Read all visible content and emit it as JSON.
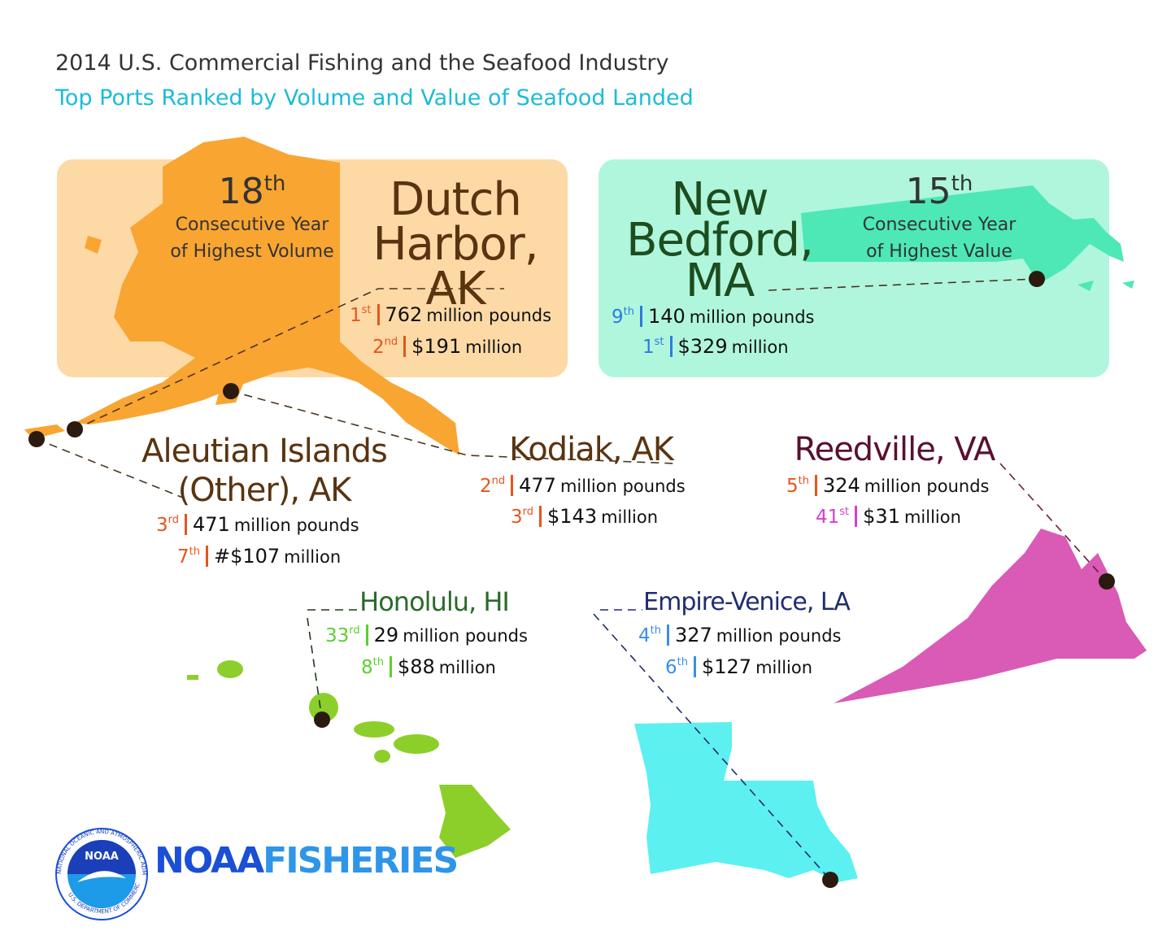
{
  "header": {
    "title": "2014 U.S. Commercial Fishing and the Seafood Industry",
    "subtitle": "Top Ports Ranked by Volume and Value of Seafood Landed"
  },
  "ports": [
    {
      "name_lines": [
        "Dutch",
        "Harbor,",
        "AK"
      ],
      "streak": {
        "number": "18",
        "suffix": "th",
        "lines": [
          "Consecutive Year",
          "of Highest Volume"
        ]
      },
      "volume": {
        "rank": "1",
        "suffix": "st",
        "amount": "762",
        "unit": "million pounds"
      },
      "value": {
        "rank": "2",
        "suffix": "nd",
        "amount": "$191",
        "unit": "million"
      }
    },
    {
      "name_lines": [
        "New",
        "Bedford,",
        "MA"
      ],
      "streak": {
        "number": "15",
        "suffix": "th",
        "lines": [
          "Consecutive Year",
          "of Highest Value"
        ]
      },
      "volume": {
        "rank": "9",
        "suffix": "th",
        "amount": "140",
        "unit": "million pounds"
      },
      "value": {
        "rank": "1",
        "suffix": "st",
        "amount": "$329",
        "unit": "million"
      }
    },
    {
      "name_lines": [
        "Aleutian Islands",
        "(Other), AK"
      ],
      "volume": {
        "rank": "3",
        "suffix": "rd",
        "amount": "471",
        "unit": "million pounds"
      },
      "value": {
        "rank": "7",
        "suffix": "th",
        "amount": "#$107",
        "unit": "million"
      }
    },
    {
      "name_lines": [
        "Kodiak, AK"
      ],
      "volume": {
        "rank": "2",
        "suffix": "nd",
        "amount": "477",
        "unit": "million pounds"
      },
      "value": {
        "rank": "3",
        "suffix": "rd",
        "amount": "$143",
        "unit": "million"
      }
    },
    {
      "name_lines": [
        "Reedville, VA"
      ],
      "volume": {
        "rank": "5",
        "suffix": "th",
        "amount": "324",
        "unit": "million pounds"
      },
      "value": {
        "rank": "41",
        "suffix": "st",
        "amount": "$31",
        "unit": "million"
      }
    },
    {
      "name_lines": [
        "Honolulu, HI"
      ],
      "volume": {
        "rank": "33",
        "suffix": "rd",
        "amount": "29",
        "unit": "million pounds"
      },
      "value": {
        "rank": "8",
        "suffix": "th",
        "amount": "$88",
        "unit": "million"
      }
    },
    {
      "name_lines": [
        "Empire-Venice, LA"
      ],
      "volume": {
        "rank": "4",
        "suffix": "th",
        "amount": "327",
        "unit": "million pounds"
      },
      "value": {
        "rank": "6",
        "suffix": "th",
        "amount": "$127",
        "unit": "million"
      }
    }
  ],
  "logo": {
    "emblem": "NOAA",
    "ring_top": "NATIONAL OCEANIC AND ATMOSPHERIC ADMINISTRATION",
    "ring_bottom": "U.S. DEPARTMENT OF COMMERCE",
    "brand_1": "NOAA",
    "brand_2": "FISHERIES"
  }
}
